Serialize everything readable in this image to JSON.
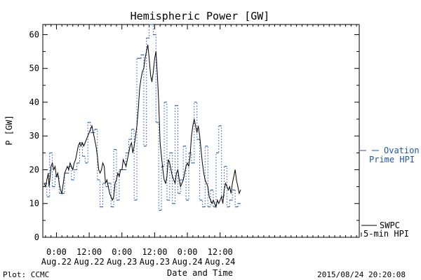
{
  "chart_data": {
    "type": "line",
    "title": "Hemispheric Power [GW]",
    "xlabel": "Date and Time",
    "ylabel": "P [GW]",
    "ylim": [
      0,
      63
    ],
    "xlim": [
      -5,
      111
    ],
    "grid": false,
    "y_ticks": [
      0,
      10,
      20,
      30,
      40,
      50,
      60
    ],
    "x_ticks": [
      {
        "x": 0,
        "line1": "0:00",
        "line2": "Aug.22"
      },
      {
        "x": 12,
        "line1": "12:00",
        "line2": "Aug.22"
      },
      {
        "x": 24,
        "line1": "0:00",
        "line2": "Aug.23"
      },
      {
        "x": 36,
        "line1": "12:00",
        "line2": "Aug.23"
      },
      {
        "x": 48,
        "line1": "0:00",
        "line2": "Aug.24"
      },
      {
        "x": 60,
        "line1": "12:00",
        "line2": "Aug.24"
      }
    ],
    "x_unit": "hours from Aug.22 0:00",
    "legend": [
      {
        "label_line1": "Ovation",
        "label_line2": "Prime HPI",
        "color": "#2255aa",
        "style": "dashed"
      },
      {
        "label_line1": "SWPC",
        "label_line2": "5-min HPI",
        "color": "#000000",
        "style": "solid"
      }
    ],
    "footer_left": "Plot: CCMC",
    "footer_right": "2015/08/24 20:20:08",
    "series": [
      {
        "name": "Ovation Prime HPI",
        "color": "#2255aa",
        "style": "dotted-step",
        "points": [
          [
            -4.5,
            16
          ],
          [
            -3.5,
            12
          ],
          [
            -2.5,
            25
          ],
          [
            -1.5,
            15
          ],
          [
            -0.5,
            18
          ],
          [
            1,
            13
          ],
          [
            3,
            19
          ],
          [
            4.5,
            21
          ],
          [
            5.5,
            17
          ],
          [
            6.5,
            20
          ],
          [
            7.5,
            22
          ],
          [
            8.5,
            28
          ],
          [
            9.5,
            24
          ],
          [
            10.5,
            22
          ],
          [
            11.5,
            34
          ],
          [
            12.5,
            31
          ],
          [
            14,
            32
          ],
          [
            15,
            17
          ],
          [
            16,
            9
          ],
          [
            17,
            16
          ],
          [
            18,
            15
          ],
          [
            19,
            16
          ],
          [
            20,
            9
          ],
          [
            21,
            26
          ],
          [
            22,
            11
          ],
          [
            23,
            20
          ],
          [
            24.5,
            20
          ],
          [
            25.5,
            25
          ],
          [
            26.5,
            29
          ],
          [
            27.5,
            32
          ],
          [
            28.5,
            11
          ],
          [
            29.5,
            53
          ],
          [
            31,
            54
          ],
          [
            32,
            27
          ],
          [
            33,
            59
          ],
          [
            34,
            63
          ],
          [
            35.5,
            60
          ],
          [
            36.5,
            34
          ],
          [
            37.5,
            8
          ],
          [
            38.5,
            21
          ],
          [
            39.5,
            40
          ],
          [
            40.5,
            11
          ],
          [
            41.5,
            25
          ],
          [
            42.5,
            10
          ],
          [
            43.5,
            39
          ],
          [
            44.5,
            13
          ],
          [
            45.5,
            17
          ],
          [
            46.5,
            27
          ],
          [
            47.5,
            11
          ],
          [
            48.5,
            25
          ],
          [
            49.5,
            22
          ],
          [
            50.5,
            40
          ],
          [
            51.5,
            29
          ],
          [
            52.5,
            11
          ],
          [
            53.5,
            9
          ],
          [
            54.5,
            27
          ],
          [
            55.5,
            9
          ],
          [
            56.5,
            14
          ],
          [
            57.5,
            9
          ],
          [
            58.5,
            25
          ],
          [
            59.5,
            33
          ],
          [
            60.5,
            12
          ],
          [
            61.5,
            21
          ],
          [
            62.5,
            9
          ],
          [
            63.5,
            11
          ],
          [
            64.5,
            14
          ],
          [
            65.5,
            9
          ],
          [
            66.5,
            10
          ]
        ]
      },
      {
        "name": "SWPC 5-min HPI",
        "color": "#000000",
        "style": "solid",
        "points": [
          [
            -4.5,
            16
          ],
          [
            -4,
            15
          ],
          [
            -3.5,
            17
          ],
          [
            -3,
            19
          ],
          [
            -2.7,
            15
          ],
          [
            -2.3,
            18
          ],
          [
            -2,
            21
          ],
          [
            -1.5,
            22
          ],
          [
            -1,
            20
          ],
          [
            -0.5,
            21
          ],
          [
            0,
            18
          ],
          [
            0.5,
            19
          ],
          [
            1,
            16
          ],
          [
            1.5,
            14
          ],
          [
            2,
            13
          ],
          [
            2.5,
            16
          ],
          [
            3,
            19
          ],
          [
            3.5,
            20
          ],
          [
            4,
            21
          ],
          [
            4.5,
            20
          ],
          [
            5,
            22
          ],
          [
            5.5,
            21
          ],
          [
            6,
            20
          ],
          [
            6.5,
            22
          ],
          [
            7,
            23
          ],
          [
            7.5,
            25
          ],
          [
            8,
            27
          ],
          [
            8.5,
            28
          ],
          [
            9,
            27
          ],
          [
            9.5,
            28
          ],
          [
            10,
            27
          ],
          [
            10.5,
            28
          ],
          [
            11,
            29
          ],
          [
            11.5,
            30
          ],
          [
            12,
            31
          ],
          [
            12.5,
            32
          ],
          [
            13,
            33
          ],
          [
            13.5,
            31
          ],
          [
            14,
            29
          ],
          [
            14.5,
            27
          ],
          [
            15,
            24
          ],
          [
            15.5,
            20
          ],
          [
            16,
            19
          ],
          [
            16.5,
            20
          ],
          [
            17,
            22
          ],
          [
            17.5,
            21
          ],
          [
            18,
            16
          ],
          [
            18.5,
            17
          ],
          [
            19,
            15
          ],
          [
            19.5,
            13
          ],
          [
            20,
            12
          ],
          [
            20.5,
            11
          ],
          [
            21,
            12
          ],
          [
            21.5,
            16
          ],
          [
            22,
            17
          ],
          [
            22.5,
            19
          ],
          [
            23,
            18
          ],
          [
            23.5,
            20
          ],
          [
            24,
            20
          ],
          [
            24.5,
            23
          ],
          [
            25,
            22
          ],
          [
            25.5,
            21
          ],
          [
            26,
            23
          ],
          [
            26.5,
            25
          ],
          [
            27,
            27
          ],
          [
            27.5,
            28
          ],
          [
            28,
            25
          ],
          [
            28.5,
            27
          ],
          [
            29,
            30
          ],
          [
            29.5,
            33
          ],
          [
            30,
            38
          ],
          [
            30.5,
            44
          ],
          [
            31,
            47
          ],
          [
            31.5,
            49
          ],
          [
            32,
            50
          ],
          [
            32.5,
            53
          ],
          [
            33,
            55
          ],
          [
            33.5,
            57
          ],
          [
            34,
            53
          ],
          [
            34.5,
            48
          ],
          [
            35,
            46
          ],
          [
            35.5,
            49
          ],
          [
            36,
            53
          ],
          [
            36.5,
            55
          ],
          [
            37,
            48
          ],
          [
            37.5,
            40
          ],
          [
            38,
            28
          ],
          [
            38.5,
            24
          ],
          [
            39,
            20
          ],
          [
            39.5,
            17
          ],
          [
            40,
            16
          ],
          [
            40.5,
            18
          ],
          [
            41,
            23
          ],
          [
            41.5,
            22
          ],
          [
            42,
            20
          ],
          [
            42.5,
            18
          ],
          [
            43,
            17
          ],
          [
            43.5,
            16
          ],
          [
            44,
            19
          ],
          [
            44.5,
            20
          ],
          [
            45,
            17
          ],
          [
            45.5,
            15
          ],
          [
            46,
            16
          ],
          [
            46.5,
            17
          ],
          [
            47,
            19
          ],
          [
            47.5,
            21
          ],
          [
            48,
            22
          ],
          [
            48.5,
            21
          ],
          [
            49,
            24
          ],
          [
            49.5,
            30
          ],
          [
            50,
            33
          ],
          [
            50.5,
            35
          ],
          [
            51,
            33
          ],
          [
            51.5,
            31
          ],
          [
            52,
            33
          ],
          [
            52.5,
            30
          ],
          [
            53,
            26
          ],
          [
            53.5,
            22
          ],
          [
            54,
            19
          ],
          [
            54.5,
            17
          ],
          [
            55,
            16
          ],
          [
            55.5,
            15
          ],
          [
            56,
            12
          ],
          [
            56.5,
            11
          ],
          [
            57,
            10
          ],
          [
            57.5,
            11
          ],
          [
            58,
            10
          ],
          [
            58.5,
            9
          ],
          [
            59,
            11
          ],
          [
            59.5,
            10
          ],
          [
            60,
            11
          ],
          [
            60.5,
            12
          ],
          [
            61,
            10
          ],
          [
            61.5,
            14
          ],
          [
            62,
            16
          ],
          [
            62.5,
            15
          ],
          [
            63,
            14
          ],
          [
            63.5,
            15
          ],
          [
            64,
            13
          ],
          [
            64.5,
            16
          ],
          [
            65,
            18
          ],
          [
            65.5,
            20
          ],
          [
            66,
            17
          ],
          [
            66.5,
            15
          ],
          [
            67,
            13
          ],
          [
            67.5,
            14
          ]
        ]
      }
    ]
  }
}
